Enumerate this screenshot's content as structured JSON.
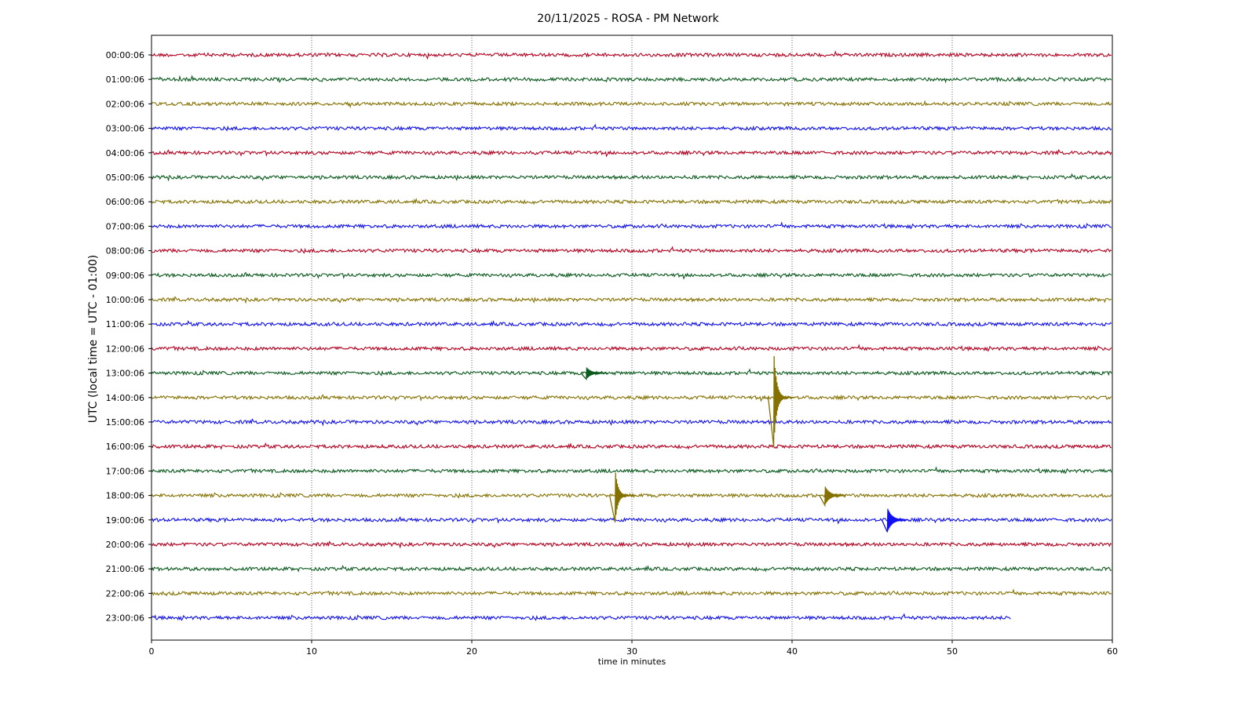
{
  "chart_data": {
    "type": "line",
    "title": "20/11/2025 - ROSA - PM Network",
    "xlabel": "time in minutes",
    "ylabel": "UTC (local time = UTC - 01:00)",
    "xlim": [
      0,
      60
    ],
    "x_ticks": [
      0,
      10,
      20,
      30,
      40,
      50,
      60
    ],
    "x_tick_labels": [
      "0",
      "10",
      "20",
      "30",
      "40",
      "50",
      "60"
    ],
    "grid": "vertical dotted lines at x ticks",
    "colors": {
      "red": "#b5001f",
      "green": "#0b5a1e",
      "olive": "#857100",
      "blue": "#1010f0"
    },
    "series": [
      {
        "name": "00:00:06",
        "color": "#b5001f",
        "end_minute": 60,
        "events": []
      },
      {
        "name": "01:00:06",
        "color": "#0b5a1e",
        "end_minute": 60,
        "events": []
      },
      {
        "name": "02:00:06",
        "color": "#857100",
        "end_minute": 60,
        "events": []
      },
      {
        "name": "03:00:06",
        "color": "#1010f0",
        "end_minute": 60,
        "events": []
      },
      {
        "name": "04:00:06",
        "color": "#b5001f",
        "end_minute": 60,
        "events": []
      },
      {
        "name": "05:00:06",
        "color": "#0b5a1e",
        "end_minute": 60,
        "events": []
      },
      {
        "name": "06:00:06",
        "color": "#857100",
        "end_minute": 60,
        "events": []
      },
      {
        "name": "07:00:06",
        "color": "#1010f0",
        "end_minute": 60,
        "events": []
      },
      {
        "name": "08:00:06",
        "color": "#b5001f",
        "end_minute": 60,
        "events": []
      },
      {
        "name": "09:00:06",
        "color": "#0b5a1e",
        "end_minute": 60,
        "events": []
      },
      {
        "name": "10:00:06",
        "color": "#857100",
        "end_minute": 60,
        "events": []
      },
      {
        "name": "11:00:06",
        "color": "#1010f0",
        "end_minute": 60,
        "events": []
      },
      {
        "name": "12:00:06",
        "color": "#b5001f",
        "end_minute": 60,
        "events": []
      },
      {
        "name": "13:00:06",
        "color": "#0b5a1e",
        "end_minute": 60,
        "events": [
          {
            "minute": 27.2,
            "amplitude": 0.25
          }
        ]
      },
      {
        "name": "14:00:06",
        "color": "#857100",
        "end_minute": 60,
        "events": [
          {
            "minute": 38.9,
            "amplitude": 2.0
          }
        ]
      },
      {
        "name": "15:00:06",
        "color": "#1010f0",
        "end_minute": 60,
        "events": []
      },
      {
        "name": "16:00:06",
        "color": "#b5001f",
        "end_minute": 60,
        "events": []
      },
      {
        "name": "17:00:06",
        "color": "#0b5a1e",
        "end_minute": 60,
        "events": []
      },
      {
        "name": "18:00:06",
        "color": "#857100",
        "end_minute": 60,
        "events": [
          {
            "minute": 29.0,
            "amplitude": 1.1
          },
          {
            "minute": 42.1,
            "amplitude": 0.4
          }
        ]
      },
      {
        "name": "19:00:06",
        "color": "#1010f0",
        "end_minute": 60,
        "events": [
          {
            "minute": 46.0,
            "amplitude": 0.5
          }
        ]
      },
      {
        "name": "20:00:06",
        "color": "#b5001f",
        "end_minute": 60,
        "events": []
      },
      {
        "name": "21:00:06",
        "color": "#0b5a1e",
        "end_minute": 60,
        "events": []
      },
      {
        "name": "22:00:06",
        "color": "#857100",
        "end_minute": 60,
        "events": []
      },
      {
        "name": "23:00:06",
        "color": "#1010f0",
        "end_minute": 53.7,
        "events": []
      }
    ]
  }
}
